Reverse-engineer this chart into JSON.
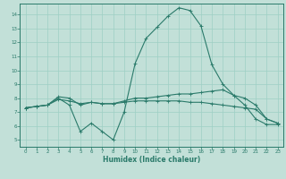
{
  "xlabel": "Humidex (Indice chaleur)",
  "ylabel": "",
  "xlim": [
    -0.5,
    23.5
  ],
  "ylim": [
    4.5,
    14.8
  ],
  "yticks": [
    5,
    6,
    7,
    8,
    9,
    10,
    11,
    12,
    13,
    14
  ],
  "xticks": [
    0,
    1,
    2,
    3,
    4,
    5,
    6,
    7,
    8,
    9,
    10,
    11,
    12,
    13,
    14,
    15,
    16,
    17,
    18,
    19,
    20,
    21,
    22,
    23
  ],
  "bg_color": "#c2e0d8",
  "line_color": "#2a7a6a",
  "grid_color": "#9ecfc4",
  "line1_x": [
    0,
    1,
    2,
    3,
    4,
    5,
    6,
    7,
    8,
    9,
    10,
    11,
    12,
    13,
    14,
    15,
    16,
    17,
    18,
    19,
    20,
    21,
    22,
    23
  ],
  "line1_y": [
    7.3,
    7.4,
    7.5,
    8.0,
    7.5,
    5.6,
    6.2,
    5.6,
    5.0,
    7.0,
    10.5,
    12.3,
    13.1,
    13.9,
    14.5,
    14.3,
    13.2,
    10.4,
    9.0,
    8.2,
    7.5,
    6.5,
    6.1,
    6.1
  ],
  "line2_x": [
    0,
    1,
    2,
    3,
    4,
    5,
    6,
    7,
    8,
    9,
    10,
    11,
    12,
    13,
    14,
    15,
    16,
    17,
    18,
    19,
    20,
    21,
    22,
    23
  ],
  "line2_y": [
    7.3,
    7.4,
    7.5,
    8.1,
    8.0,
    7.5,
    7.7,
    7.6,
    7.6,
    7.8,
    8.0,
    8.0,
    8.1,
    8.2,
    8.3,
    8.3,
    8.4,
    8.5,
    8.6,
    8.2,
    8.0,
    7.5,
    6.5,
    6.2
  ],
  "line3_x": [
    0,
    1,
    2,
    3,
    4,
    5,
    6,
    7,
    8,
    9,
    10,
    11,
    12,
    13,
    14,
    15,
    16,
    17,
    18,
    19,
    20,
    21,
    22,
    23
  ],
  "line3_y": [
    7.3,
    7.4,
    7.5,
    7.9,
    7.8,
    7.6,
    7.7,
    7.6,
    7.6,
    7.7,
    7.8,
    7.8,
    7.8,
    7.8,
    7.8,
    7.7,
    7.7,
    7.6,
    7.5,
    7.4,
    7.3,
    7.2,
    6.5,
    6.2
  ]
}
